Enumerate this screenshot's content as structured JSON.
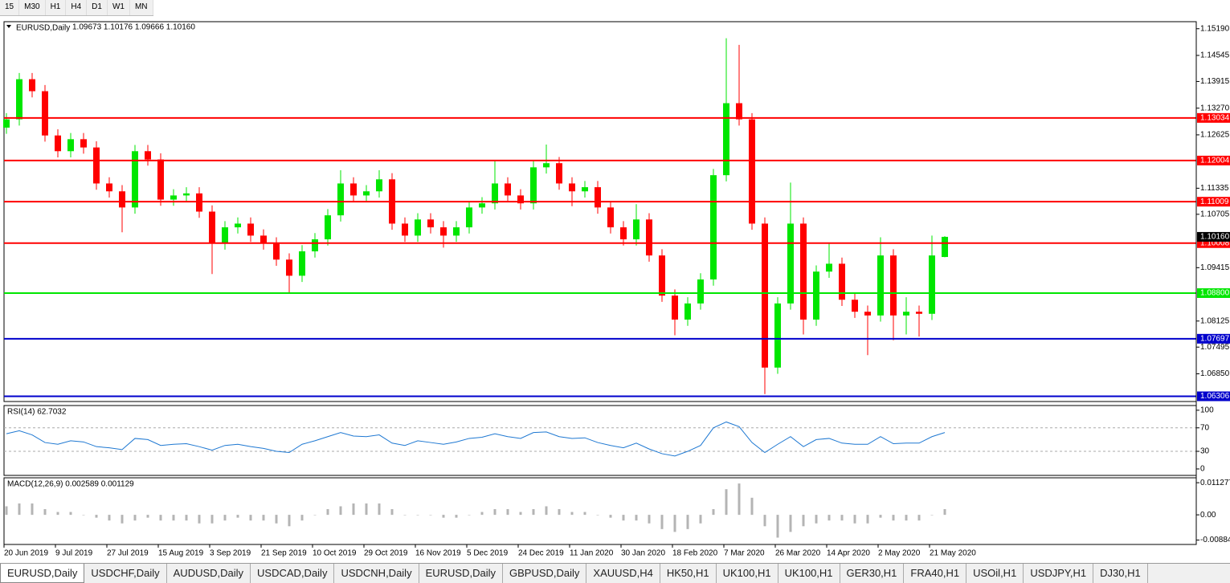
{
  "toolbar": {
    "timeframes": [
      "15",
      "M30",
      "H1",
      "H4",
      "D1",
      "W1",
      "MN"
    ]
  },
  "tabs": [
    "EURUSD,Daily",
    "USDCHF,Daily",
    "AUDUSD,Daily",
    "USDCAD,Daily",
    "USDCNH,Daily",
    "EURUSD,Daily",
    "GBPUSD,Daily",
    "XAUUSD,H4",
    "HK50,H1",
    "UK100,H1",
    "UK100,H1",
    "GER30,H1",
    "FRA40,H1",
    "USOil,H1",
    "USDJPY,H1",
    "DJ30,H1"
  ],
  "chart_data": [
    {
      "type": "candlestick",
      "title": "EURUSD,Daily",
      "quote": "1.09673 1.10176 1.09666 1.10160",
      "categories": [
        "20 Jun 2019",
        null,
        null,
        null,
        "9 Jul 2019",
        null,
        null,
        null,
        "27 Jul 2019",
        null,
        null,
        null,
        "15 Aug 2019",
        null,
        null,
        null,
        "3 Sep 2019",
        null,
        null,
        null,
        "21 Sep 2019",
        null,
        null,
        null,
        "10 Oct 2019",
        null,
        null,
        null,
        "29 Oct 2019",
        null,
        null,
        null,
        "16 Nov 2019",
        null,
        null,
        null,
        "5 Dec 2019",
        null,
        null,
        null,
        "24 Dec 2019",
        null,
        null,
        null,
        "11 Jan 2020",
        null,
        null,
        null,
        "30 Jan 2020",
        null,
        null,
        null,
        "18 Feb 2020",
        null,
        null,
        null,
        "7 Mar 2020",
        null,
        null,
        null,
        "26 Mar 2020",
        null,
        null,
        null,
        "14 Apr 2020",
        null,
        null,
        null,
        "2 May 2020",
        null,
        null,
        null,
        "21 May 2020",
        null
      ],
      "open": [
        1.128,
        1.13,
        1.1397,
        1.1368,
        1.1261,
        1.1223,
        1.1252,
        1.1232,
        1.1145,
        1.1126,
        1.1087,
        1.1223,
        1.1203,
        1.1106,
        1.1116,
        1.1121,
        1.1077,
        1.1,
        1.1039,
        1.1048,
        1.1019,
        1.1,
        1.0961,
        1.0922,
        1.0981,
        1.101,
        1.1068,
        1.1145,
        1.1116,
        1.1126,
        1.1155,
        1.1048,
        1.1019,
        1.1058,
        1.1039,
        1.1019,
        1.1039,
        1.1087,
        1.1097,
        1.1145,
        1.1116,
        1.1097,
        1.1184,
        1.1194,
        1.1145,
        1.1126,
        1.1136,
        1.1087,
        1.1039,
        1.101,
        1.1058,
        1.0971,
        1.0874,
        1.0816,
        1.0855,
        1.0913,
        1.1165,
        1.1339,
        1.13,
        1.1048,
        1.07,
        1.0855,
        1.1048,
        1.0816,
        1.0932,
        1.0951,
        1.0864,
        1.0835,
        1.0826,
        1.0971,
        1.0826,
        1.0835,
        1.083,
        1.09673
      ],
      "high": [
        1.1315,
        1.1412,
        1.1412,
        1.1383,
        1.1276,
        1.1267,
        1.1267,
        1.1247,
        1.116,
        1.1141,
        1.1238,
        1.1238,
        1.1218,
        1.1131,
        1.1136,
        1.1136,
        1.1092,
        1.1054,
        1.1063,
        1.1063,
        1.1034,
        1.1015,
        1.0976,
        1.0996,
        1.1025,
        1.1083,
        1.1177,
        1.116,
        1.1141,
        1.1177,
        1.117,
        1.1063,
        1.1073,
        1.1073,
        1.1054,
        1.1054,
        1.1102,
        1.1112,
        1.12,
        1.116,
        1.1131,
        1.1199,
        1.1239,
        1.1209,
        1.116,
        1.1151,
        1.1151,
        1.1102,
        1.1054,
        1.1095,
        1.1073,
        1.0986,
        1.0889,
        1.087,
        1.0928,
        1.118,
        1.1496,
        1.148,
        1.1315,
        1.1063,
        1.087,
        1.1147,
        1.1063,
        1.0947,
        1.1,
        1.0966,
        1.0879,
        1.085,
        1.1015,
        1.0986,
        1.087,
        1.085,
        1.1019,
        1.10176
      ],
      "low": [
        1.1265,
        1.1285,
        1.1353,
        1.1246,
        1.1208,
        1.1208,
        1.1217,
        1.113,
        1.1111,
        1.1027,
        1.1072,
        1.1188,
        1.1091,
        1.1091,
        1.1101,
        1.1062,
        1.0926,
        1.0985,
        1.1024,
        1.1004,
        1.0985,
        1.0946,
        1.088,
        1.0907,
        1.0966,
        1.0995,
        1.1053,
        1.1101,
        1.1101,
        1.1111,
        1.1033,
        1.1004,
        1.1004,
        1.1024,
        1.099,
        1.1004,
        1.1024,
        1.1072,
        1.1082,
        1.1101,
        1.1082,
        1.1082,
        1.1169,
        1.113,
        1.109,
        1.1111,
        1.1072,
        1.1024,
        1.0995,
        1.0995,
        1.0956,
        1.0859,
        1.0778,
        1.0801,
        1.084,
        1.0898,
        1.115,
        1.1285,
        1.1033,
        1.0636,
        1.0685,
        1.084,
        1.078,
        1.0801,
        1.0917,
        1.0849,
        1.082,
        1.073,
        1.0811,
        1.0766,
        1.078,
        1.0775,
        1.0815,
        1.09666
      ],
      "close": [
        1.13,
        1.1397,
        1.1368,
        1.1261,
        1.1223,
        1.1252,
        1.1232,
        1.1145,
        1.1126,
        1.1087,
        1.1223,
        1.1203,
        1.1106,
        1.1116,
        1.1121,
        1.1077,
        1.1,
        1.1039,
        1.1048,
        1.1019,
        1.1,
        1.0961,
        1.0922,
        1.0981,
        1.101,
        1.1068,
        1.1145,
        1.1116,
        1.1126,
        1.1155,
        1.1048,
        1.1019,
        1.1058,
        1.1039,
        1.1019,
        1.1039,
        1.1087,
        1.1097,
        1.1145,
        1.1116,
        1.1097,
        1.1184,
        1.1194,
        1.1145,
        1.1126,
        1.1136,
        1.1087,
        1.1039,
        1.101,
        1.1058,
        1.0971,
        1.0874,
        1.0816,
        1.0855,
        1.0913,
        1.1165,
        1.1339,
        1.13,
        1.1048,
        1.07,
        1.0855,
        1.1048,
        1.0816,
        1.0932,
        1.0951,
        1.0864,
        1.0835,
        1.0826,
        1.0971,
        1.0826,
        1.0835,
        1.083,
        1.0971,
        1.1016
      ],
      "up_color": "#00e600",
      "down_color": "#ff0000",
      "ylim": [
        1.0618,
        1.1536
      ],
      "yticks": [
        {
          "value": 1.1519,
          "label": "1.15190"
        },
        1.14545,
        1.13915,
        {
          "value": 1.1327,
          "label": "1.13270"
        },
        1.12625,
        1.11335,
        1.10705,
        1.09415,
        1.08125,
        1.07495,
        {
          "value": 1.0685,
          "label": "1.06850"
        }
      ],
      "levels": [
        {
          "value": 1.13034,
          "color": "#ff0000"
        },
        {
          "value": 1.12004,
          "color": "#ff0000"
        },
        {
          "value": 1.11009,
          "color": "#ff0000"
        },
        {
          "value": 1.10008,
          "color": "#ff0000"
        },
        {
          "value": 1.088,
          "label": "1.08800",
          "color": "#00e600"
        },
        {
          "value": 1.07697,
          "color": "#0000cc"
        },
        {
          "value": 1.06306,
          "color": "#0000cc"
        }
      ],
      "last": {
        "value": 1.1016,
        "label": "1.10160"
      }
    },
    {
      "type": "line",
      "title": "RSI(14) 62.7032",
      "color": "#1e78d2",
      "values": [
        60,
        65,
        58,
        45,
        42,
        48,
        46,
        38,
        36,
        33,
        52,
        50,
        40,
        42,
        43,
        38,
        32,
        40,
        42,
        38,
        35,
        30,
        28,
        42,
        48,
        55,
        62,
        56,
        55,
        58,
        44,
        40,
        48,
        45,
        42,
        46,
        52,
        54,
        60,
        55,
        52,
        62,
        63,
        55,
        52,
        53,
        45,
        40,
        36,
        44,
        34,
        26,
        22,
        30,
        40,
        70,
        80,
        72,
        45,
        28,
        42,
        55,
        38,
        50,
        52,
        44,
        42,
        42,
        55,
        43,
        44,
        44,
        55,
        62
      ],
      "ylim": [
        -11,
        108
      ],
      "yticks": [
        0,
        30,
        70,
        100
      ],
      "levels": [
        30,
        70
      ]
    },
    {
      "type": "bar",
      "title": "MACD(12,26,9) 0.002589 0.001129",
      "color": "#b4b4b4",
      "values": [
        0.003,
        0.004,
        0.004,
        0.002,
        0.001,
        0.001,
        0,
        -0.001,
        -0.002,
        -0.003,
        -0.002,
        -0.001,
        -0.002,
        -0.002,
        -0.002,
        -0.003,
        -0.003,
        -0.002,
        -0.001,
        -0.002,
        -0.002,
        -0.003,
        -0.004,
        -0.002,
        0,
        0.002,
        0.003,
        0.004,
        0.004,
        0.004,
        0.002,
        0,
        0,
        0,
        -0.001,
        -0.001,
        0,
        0.001,
        0.002,
        0.002,
        0.001,
        0.002,
        0.003,
        0.002,
        0.001,
        0.001,
        0,
        -0.001,
        -0.002,
        -0.002,
        -0.003,
        -0.005,
        -0.006,
        -0.005,
        -0.003,
        0.002,
        0.009,
        0.011,
        0.006,
        -0.004,
        -0.008,
        -0.006,
        -0.004,
        -0.003,
        -0.002,
        -0.002,
        -0.003,
        -0.003,
        -0.001,
        -0.002,
        -0.002,
        -0.002,
        0,
        0.002
      ],
      "ylim": [
        -0.0104,
        0.013
      ],
      "yticks": [
        -0.008845,
        {
          "value": 0,
          "label": "0.00"
        },
        0.011277
      ]
    }
  ]
}
